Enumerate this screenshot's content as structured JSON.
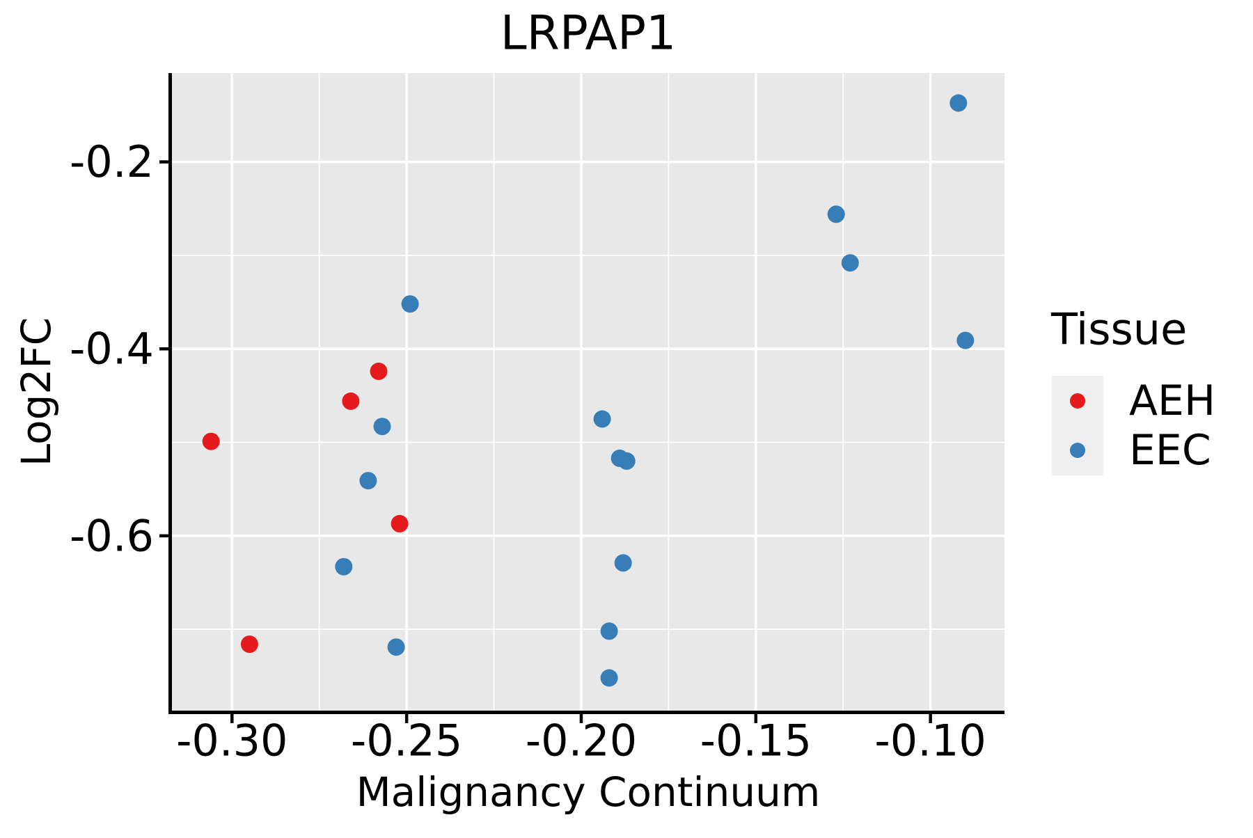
{
  "chart_data": {
    "type": "scatter",
    "title": "LRPAP1",
    "xlabel": "Malignancy Continuum",
    "ylabel": "Log2FC",
    "xlim": [
      -0.3172,
      -0.0788
    ],
    "ylim": [
      -0.787,
      -0.105
    ],
    "grid": {
      "major": true,
      "minor": true,
      "background": "#e8e8e8",
      "gridline_color": "#ffffff"
    },
    "x_ticks": [
      {
        "value": -0.3,
        "label": "-0.30"
      },
      {
        "value": -0.25,
        "label": "-0.25"
      },
      {
        "value": -0.2,
        "label": "-0.20"
      },
      {
        "value": -0.15,
        "label": "-0.15"
      },
      {
        "value": -0.1,
        "label": "-0.10"
      }
    ],
    "x_minor_ticks": [
      -0.275,
      -0.225,
      -0.175,
      -0.125
    ],
    "y_ticks": [
      {
        "value": -0.2,
        "label": "-0.2"
      },
      {
        "value": -0.4,
        "label": "-0.4"
      },
      {
        "value": -0.6,
        "label": "-0.6"
      }
    ],
    "y_minor_ticks": [
      -0.3,
      -0.5,
      -0.7
    ],
    "legend_position": "right",
    "series": [
      {
        "name": "AEH",
        "color": "#e41a1c",
        "points": [
          {
            "x": -0.306,
            "y": -0.499
          },
          {
            "x": -0.295,
            "y": -0.716
          },
          {
            "x": -0.258,
            "y": -0.424
          },
          {
            "x": -0.266,
            "y": -0.456
          },
          {
            "x": -0.252,
            "y": -0.587
          }
        ]
      },
      {
        "name": "EEC",
        "color": "#377eb8",
        "points": [
          {
            "x": -0.249,
            "y": -0.352
          },
          {
            "x": -0.257,
            "y": -0.483
          },
          {
            "x": -0.261,
            "y": -0.541
          },
          {
            "x": -0.268,
            "y": -0.633
          },
          {
            "x": -0.253,
            "y": -0.719
          },
          {
            "x": -0.194,
            "y": -0.475
          },
          {
            "x": -0.189,
            "y": -0.517
          },
          {
            "x": -0.187,
            "y": -0.52
          },
          {
            "x": -0.188,
            "y": -0.629
          },
          {
            "x": -0.192,
            "y": -0.702
          },
          {
            "x": -0.192,
            "y": -0.752
          },
          {
            "x": -0.127,
            "y": -0.256
          },
          {
            "x": -0.123,
            "y": -0.308
          },
          {
            "x": -0.092,
            "y": -0.137
          },
          {
            "x": -0.09,
            "y": -0.391
          }
        ]
      }
    ]
  },
  "legend": {
    "title": "Tissue",
    "items": [
      {
        "label": "AEH",
        "color": "#e41a1c"
      },
      {
        "label": "EEC",
        "color": "#377eb8"
      }
    ],
    "key_background": "#efefef"
  },
  "style": {
    "plot_background": "#e8e8e8",
    "gridline_color": "#ffffff",
    "spine_color": "#000000",
    "point_radius": 12.5,
    "legend_point_radius": 11
  }
}
